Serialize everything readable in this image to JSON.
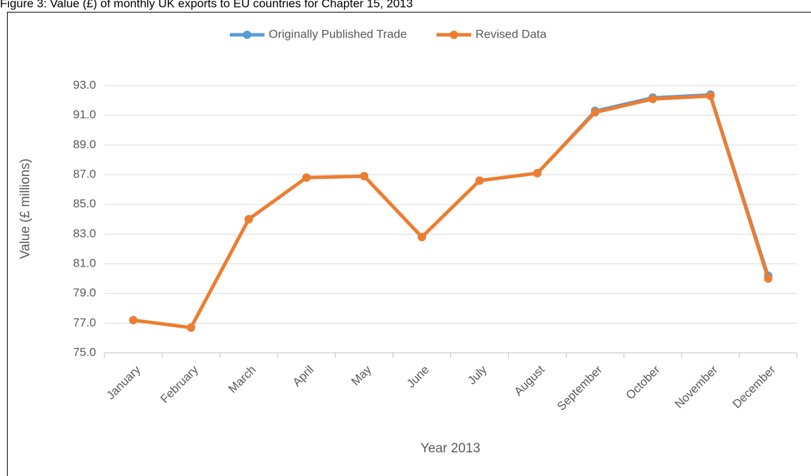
{
  "chart_data": {
    "type": "line",
    "title": "Figure 3: Value (£) of monthly UK exports to EU countries for Chapter 15, 2013",
    "categories": [
      "January",
      "February",
      "March",
      "April",
      "May",
      "June",
      "July",
      "August",
      "September",
      "October",
      "November",
      "December"
    ],
    "series": [
      {
        "name": "Originally Published Trade",
        "color": "#5b9bd5",
        "values": [
          77.2,
          76.7,
          84.0,
          86.8,
          86.9,
          82.8,
          86.6,
          87.1,
          91.3,
          92.2,
          92.4,
          80.2
        ]
      },
      {
        "name": "Revised Data",
        "color": "#ed7d31",
        "values": [
          77.2,
          76.7,
          84.0,
          86.8,
          86.9,
          82.8,
          86.6,
          87.1,
          91.2,
          92.1,
          92.3,
          80.0
        ]
      }
    ],
    "ylabel": "Value (£ millions)",
    "xlabel": "Year 2013",
    "ylim": [
      75,
      93
    ],
    "yticks": [
      {
        "value": 75,
        "label": "75.0"
      },
      {
        "value": 77,
        "label": "77.0"
      },
      {
        "value": 79,
        "label": "79.0"
      },
      {
        "value": 81,
        "label": "81.0"
      },
      {
        "value": 83,
        "label": "83.0"
      },
      {
        "value": 85,
        "label": "85.0"
      },
      {
        "value": 87,
        "label": "87.0"
      },
      {
        "value": 89,
        "label": "89.0"
      },
      {
        "value": 91,
        "label": "91.0"
      },
      {
        "value": 93,
        "label": "93.0"
      }
    ],
    "grid": true,
    "legend": "top"
  }
}
